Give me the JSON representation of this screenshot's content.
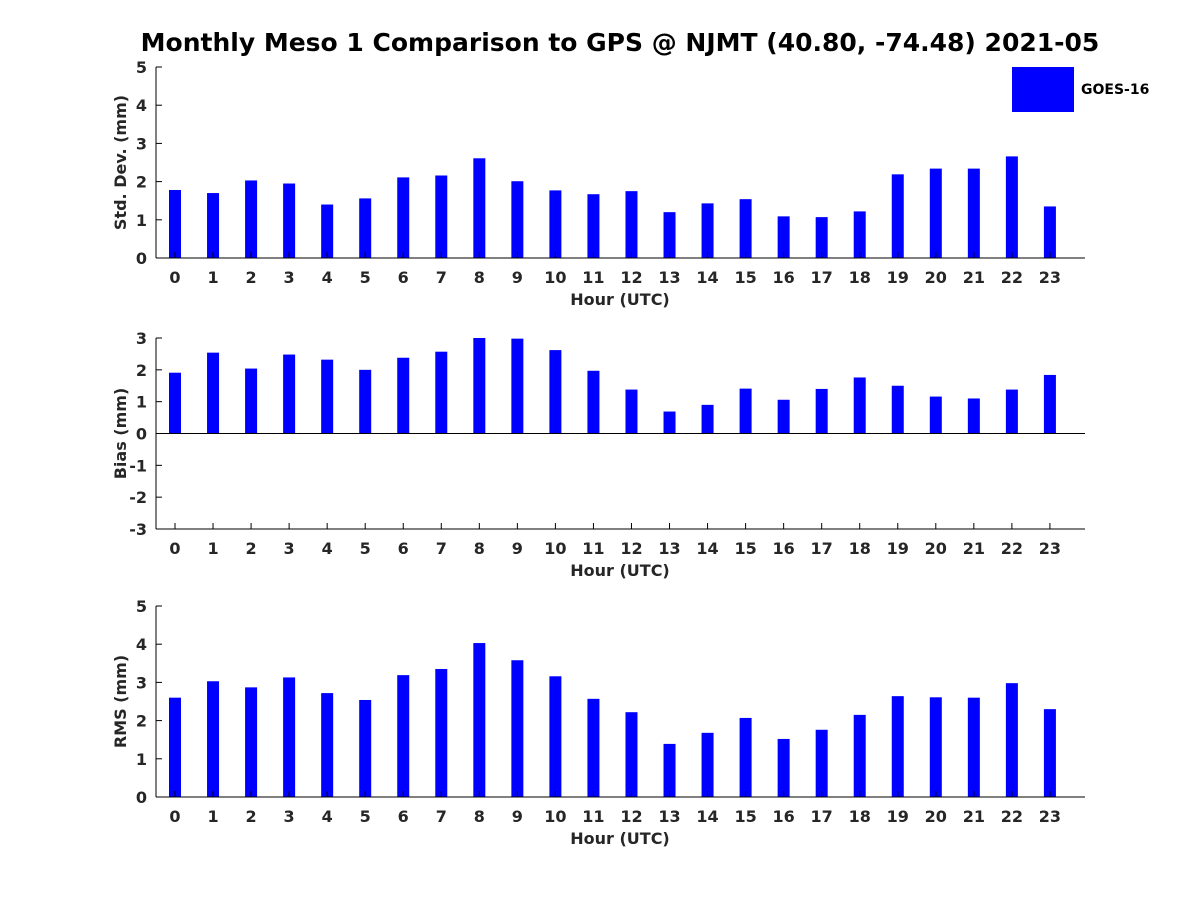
{
  "title": "Monthly Meso 1 Comparison to GPS @ NJMT (40.80, -74.48) 2021-05",
  "legend": {
    "label": "GOES-16",
    "color": "#0000ff"
  },
  "chart_data": [
    {
      "type": "bar",
      "title": "",
      "xlabel": "Hour (UTC)",
      "ylabel": "Std. Dev. (mm)",
      "ylim": [
        0,
        5
      ],
      "yticks": [
        0,
        1,
        2,
        3,
        4,
        5
      ],
      "categories": [
        "0",
        "1",
        "2",
        "3",
        "4",
        "5",
        "6",
        "7",
        "8",
        "9",
        "10",
        "11",
        "12",
        "13",
        "14",
        "15",
        "16",
        "17",
        "18",
        "19",
        "20",
        "21",
        "22",
        "23"
      ],
      "series": [
        {
          "name": "GOES-16",
          "color": "#0000ff",
          "values": [
            1.78,
            1.7,
            2.03,
            1.95,
            1.4,
            1.56,
            2.11,
            2.16,
            2.61,
            2.01,
            1.77,
            1.67,
            1.75,
            1.2,
            1.43,
            1.54,
            1.09,
            1.07,
            1.22,
            2.19,
            2.34,
            2.34,
            2.66,
            1.35
          ]
        }
      ],
      "legend": "top-right",
      "grid": false
    },
    {
      "type": "bar",
      "title": "",
      "xlabel": "Hour (UTC)",
      "ylabel": "Bias (mm)",
      "ylim": [
        -3,
        3
      ],
      "yticks": [
        -3,
        -2,
        -1,
        0,
        1,
        2,
        3
      ],
      "categories": [
        "0",
        "1",
        "2",
        "3",
        "4",
        "5",
        "6",
        "7",
        "8",
        "9",
        "10",
        "11",
        "12",
        "13",
        "14",
        "15",
        "16",
        "17",
        "18",
        "19",
        "20",
        "21",
        "22",
        "23"
      ],
      "series": [
        {
          "name": "GOES-16",
          "color": "#0000ff",
          "values": [
            1.91,
            2.54,
            2.04,
            2.48,
            2.32,
            2.0,
            2.38,
            2.57,
            3.0,
            2.98,
            2.62,
            1.97,
            1.38,
            0.69,
            0.9,
            1.41,
            1.06,
            1.4,
            1.76,
            1.5,
            1.16,
            1.1,
            1.38,
            1.84
          ]
        }
      ],
      "grid": false
    },
    {
      "type": "bar",
      "title": "",
      "xlabel": "Hour (UTC)",
      "ylabel": "RMS (mm)",
      "ylim": [
        0,
        5
      ],
      "yticks": [
        0,
        1,
        2,
        3,
        4,
        5
      ],
      "categories": [
        "0",
        "1",
        "2",
        "3",
        "4",
        "5",
        "6",
        "7",
        "8",
        "9",
        "10",
        "11",
        "12",
        "13",
        "14",
        "15",
        "16",
        "17",
        "18",
        "19",
        "20",
        "21",
        "22",
        "23"
      ],
      "series": [
        {
          "name": "GOES-16",
          "color": "#0000ff",
          "values": [
            2.6,
            3.03,
            2.87,
            3.13,
            2.72,
            2.54,
            3.19,
            3.35,
            4.03,
            3.58,
            3.16,
            2.57,
            2.22,
            1.39,
            1.68,
            2.07,
            1.52,
            1.76,
            2.15,
            2.64,
            2.61,
            2.6,
            2.98,
            2.3
          ]
        }
      ],
      "grid": false
    }
  ]
}
